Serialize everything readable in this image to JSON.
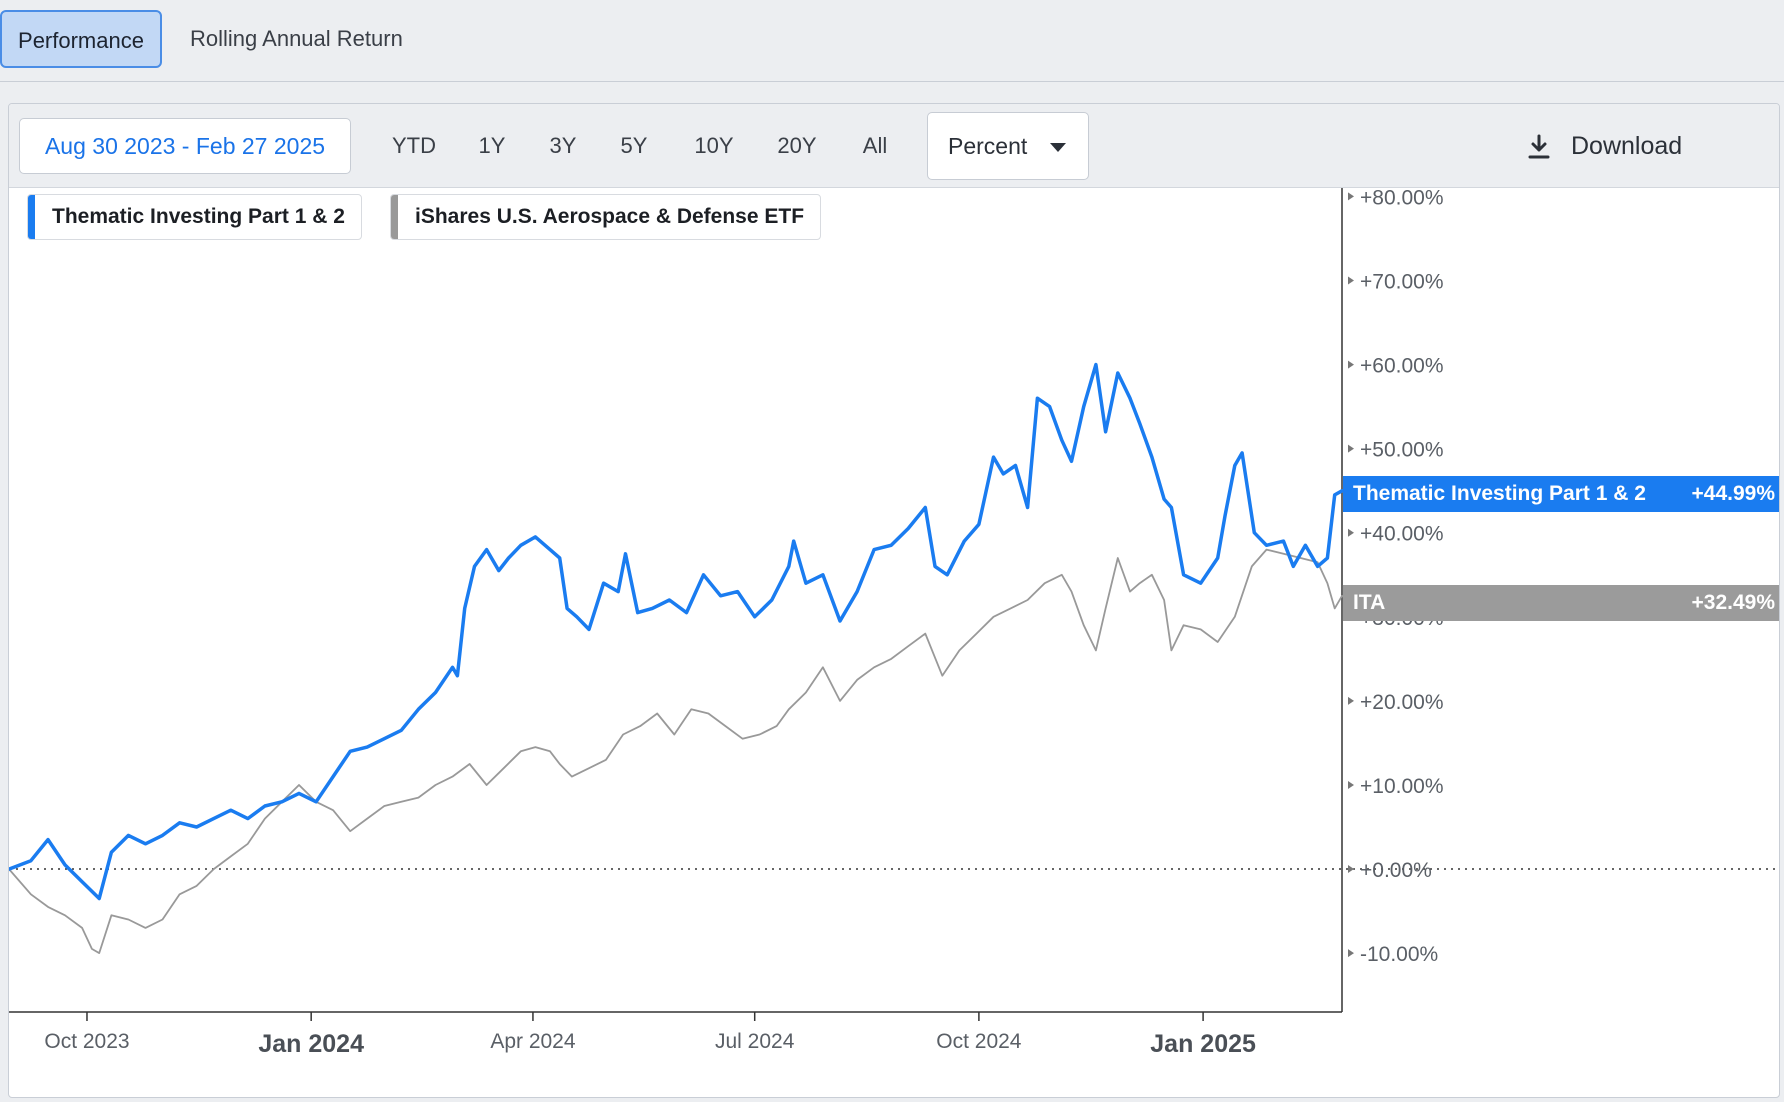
{
  "tabs": [
    {
      "label": "Performance",
      "active": true
    },
    {
      "label": "Rolling Annual Return",
      "active": false
    }
  ],
  "toolbar": {
    "date_range": "Aug 30 2023 - Feb 27 2025",
    "periods": [
      "YTD",
      "1Y",
      "3Y",
      "5Y",
      "10Y",
      "20Y",
      "All"
    ],
    "unit_selected": "Percent",
    "download_label": "Download"
  },
  "legend": [
    {
      "name": "Thematic Investing Part 1 & 2",
      "color": "#1a7cf0"
    },
    {
      "name": "iShares U.S. Aerospace & Defense ETF",
      "color": "#999999"
    }
  ],
  "end_labels": [
    {
      "name": "Thematic Investing Part 1 & 2",
      "value": "+44.99%",
      "color": "#1a7cf0"
    },
    {
      "name": "ITA",
      "value": "+32.49%",
      "color": "#9b9b9b"
    }
  ],
  "chart_data": {
    "type": "line",
    "ylim": [
      -17,
      81
    ],
    "y_ticks": [
      80,
      70,
      60,
      50,
      40,
      30,
      20,
      10,
      0,
      -10
    ],
    "y_tick_labels": [
      "+80.00%",
      "+70.00%",
      "+60.00%",
      "+50.00%",
      "+40.00%",
      "+30.00%",
      "+20.00%",
      "+10.00%",
      "+0.00%",
      "-10.00%"
    ],
    "x_ticks": [
      {
        "label": "Oct 2023",
        "date": "2023-10-01",
        "bold": false
      },
      {
        "label": "Jan 2024",
        "date": "2024-01-01",
        "bold": true
      },
      {
        "label": "Apr 2024",
        "date": "2024-04-01",
        "bold": false
      },
      {
        "label": "Jul 2024",
        "date": "2024-07-01",
        "bold": false
      },
      {
        "label": "Oct 2024",
        "date": "2024-10-01",
        "bold": false
      },
      {
        "label": "Jan 2025",
        "date": "2025-01-01",
        "bold": true
      }
    ],
    "x_range": [
      "2023-08-30",
      "2025-02-27"
    ],
    "series": [
      {
        "name": "Thematic Investing Part 1 & 2",
        "color": "#1a7cf0",
        "points": [
          [
            "2023-08-30",
            0
          ],
          [
            "2023-09-08",
            1
          ],
          [
            "2023-09-15",
            3.5
          ],
          [
            "2023-09-22",
            0.5
          ],
          [
            "2023-09-29",
            -1.5
          ],
          [
            "2023-10-06",
            -3.5
          ],
          [
            "2023-10-11",
            2
          ],
          [
            "2023-10-18",
            4
          ],
          [
            "2023-10-25",
            3
          ],
          [
            "2023-11-01",
            4
          ],
          [
            "2023-11-08",
            5.5
          ],
          [
            "2023-11-15",
            5
          ],
          [
            "2023-11-22",
            6
          ],
          [
            "2023-11-29",
            7
          ],
          [
            "2023-12-06",
            6
          ],
          [
            "2023-12-13",
            7.5
          ],
          [
            "2023-12-20",
            8
          ],
          [
            "2023-12-27",
            9
          ],
          [
            "2024-01-03",
            8
          ],
          [
            "2024-01-10",
            11
          ],
          [
            "2024-01-17",
            14
          ],
          [
            "2024-01-24",
            14.5
          ],
          [
            "2024-01-31",
            15.5
          ],
          [
            "2024-02-07",
            16.5
          ],
          [
            "2024-02-14",
            19
          ],
          [
            "2024-02-21",
            21
          ],
          [
            "2024-02-28",
            24
          ],
          [
            "2024-03-01",
            23
          ],
          [
            "2024-03-04",
            31
          ],
          [
            "2024-03-08",
            36
          ],
          [
            "2024-03-13",
            38
          ],
          [
            "2024-03-18",
            35.5
          ],
          [
            "2024-03-22",
            37
          ],
          [
            "2024-03-27",
            38.5
          ],
          [
            "2024-04-02",
            39.5
          ],
          [
            "2024-04-08",
            38
          ],
          [
            "2024-04-12",
            37
          ],
          [
            "2024-04-15",
            31
          ],
          [
            "2024-04-19",
            30
          ],
          [
            "2024-04-24",
            28.5
          ],
          [
            "2024-04-30",
            34
          ],
          [
            "2024-05-06",
            33
          ],
          [
            "2024-05-09",
            37.5
          ],
          [
            "2024-05-14",
            30.5
          ],
          [
            "2024-05-20",
            31
          ],
          [
            "2024-05-27",
            32
          ],
          [
            "2024-06-03",
            30.5
          ],
          [
            "2024-06-10",
            35
          ],
          [
            "2024-06-17",
            32.5
          ],
          [
            "2024-06-24",
            33
          ],
          [
            "2024-07-01",
            30
          ],
          [
            "2024-07-08",
            32
          ],
          [
            "2024-07-15",
            36
          ],
          [
            "2024-07-17",
            39
          ],
          [
            "2024-07-22",
            34
          ],
          [
            "2024-07-29",
            35
          ],
          [
            "2024-08-05",
            29.5
          ],
          [
            "2024-08-12",
            33
          ],
          [
            "2024-08-19",
            38
          ],
          [
            "2024-08-26",
            38.5
          ],
          [
            "2024-09-02",
            40.5
          ],
          [
            "2024-09-09",
            43
          ],
          [
            "2024-09-13",
            36
          ],
          [
            "2024-09-18",
            35
          ],
          [
            "2024-09-25",
            39
          ],
          [
            "2024-10-01",
            41
          ],
          [
            "2024-10-07",
            49
          ],
          [
            "2024-10-11",
            47
          ],
          [
            "2024-10-16",
            48
          ],
          [
            "2024-10-21",
            43
          ],
          [
            "2024-10-25",
            56
          ],
          [
            "2024-10-30",
            55
          ],
          [
            "2024-11-04",
            51
          ],
          [
            "2024-11-08",
            48.5
          ],
          [
            "2024-11-13",
            55
          ],
          [
            "2024-11-18",
            60
          ],
          [
            "2024-11-22",
            52
          ],
          [
            "2024-11-27",
            59
          ],
          [
            "2024-12-02",
            56
          ],
          [
            "2024-12-06",
            53
          ],
          [
            "2024-12-11",
            49
          ],
          [
            "2024-12-16",
            44
          ],
          [
            "2024-12-19",
            43
          ],
          [
            "2024-12-24",
            35
          ],
          [
            "2024-12-31",
            34
          ],
          [
            "2025-01-07",
            37
          ],
          [
            "2025-01-10",
            42
          ],
          [
            "2025-01-14",
            48
          ],
          [
            "2025-01-17",
            49.5
          ],
          [
            "2025-01-22",
            40
          ],
          [
            "2025-01-27",
            38.5
          ],
          [
            "2025-02-03",
            39
          ],
          [
            "2025-02-07",
            36
          ],
          [
            "2025-02-12",
            38.5
          ],
          [
            "2025-02-17",
            36
          ],
          [
            "2025-02-21",
            37
          ],
          [
            "2025-02-24",
            44.5
          ],
          [
            "2025-02-27",
            44.99
          ]
        ]
      },
      {
        "name": "iShares U.S. Aerospace & Defense ETF",
        "color": "#999999",
        "points": [
          [
            "2023-08-30",
            0
          ],
          [
            "2023-09-08",
            -3
          ],
          [
            "2023-09-15",
            -4.5
          ],
          [
            "2023-09-22",
            -5.5
          ],
          [
            "2023-09-29",
            -7
          ],
          [
            "2023-10-03",
            -9.5
          ],
          [
            "2023-10-06",
            -10
          ],
          [
            "2023-10-11",
            -5.5
          ],
          [
            "2023-10-18",
            -6
          ],
          [
            "2023-10-25",
            -7
          ],
          [
            "2023-11-01",
            -6
          ],
          [
            "2023-11-08",
            -3
          ],
          [
            "2023-11-15",
            -2
          ],
          [
            "2023-11-22",
            0
          ],
          [
            "2023-11-29",
            1.5
          ],
          [
            "2023-12-06",
            3
          ],
          [
            "2023-12-13",
            6
          ],
          [
            "2023-12-20",
            8
          ],
          [
            "2023-12-27",
            10
          ],
          [
            "2024-01-03",
            8
          ],
          [
            "2024-01-10",
            7
          ],
          [
            "2024-01-17",
            4.5
          ],
          [
            "2024-01-24",
            6
          ],
          [
            "2024-01-31",
            7.5
          ],
          [
            "2024-02-07",
            8
          ],
          [
            "2024-02-14",
            8.5
          ],
          [
            "2024-02-21",
            10
          ],
          [
            "2024-02-28",
            11
          ],
          [
            "2024-03-06",
            12.5
          ],
          [
            "2024-03-13",
            10
          ],
          [
            "2024-03-20",
            12
          ],
          [
            "2024-03-27",
            14
          ],
          [
            "2024-04-02",
            14.5
          ],
          [
            "2024-04-08",
            14
          ],
          [
            "2024-04-12",
            12.5
          ],
          [
            "2024-04-17",
            11
          ],
          [
            "2024-04-24",
            12
          ],
          [
            "2024-05-01",
            13
          ],
          [
            "2024-05-08",
            16
          ],
          [
            "2024-05-15",
            17
          ],
          [
            "2024-05-22",
            18.5
          ],
          [
            "2024-05-29",
            16
          ],
          [
            "2024-06-05",
            19
          ],
          [
            "2024-06-12",
            18.5
          ],
          [
            "2024-06-19",
            17
          ],
          [
            "2024-06-26",
            15.5
          ],
          [
            "2024-07-03",
            16
          ],
          [
            "2024-07-10",
            17
          ],
          [
            "2024-07-15",
            19
          ],
          [
            "2024-07-22",
            21
          ],
          [
            "2024-07-29",
            24
          ],
          [
            "2024-08-05",
            20
          ],
          [
            "2024-08-12",
            22.5
          ],
          [
            "2024-08-19",
            24
          ],
          [
            "2024-08-26",
            25
          ],
          [
            "2024-09-02",
            26.5
          ],
          [
            "2024-09-09",
            28
          ],
          [
            "2024-09-16",
            23
          ],
          [
            "2024-09-23",
            26
          ],
          [
            "2024-09-30",
            28
          ],
          [
            "2024-10-07",
            30
          ],
          [
            "2024-10-14",
            31
          ],
          [
            "2024-10-21",
            32
          ],
          [
            "2024-10-28",
            34
          ],
          [
            "2024-11-04",
            35
          ],
          [
            "2024-11-08",
            33
          ],
          [
            "2024-11-13",
            29
          ],
          [
            "2024-11-18",
            26
          ],
          [
            "2024-11-22",
            31
          ],
          [
            "2024-11-27",
            37
          ],
          [
            "2024-12-02",
            33
          ],
          [
            "2024-12-06",
            34
          ],
          [
            "2024-12-11",
            35
          ],
          [
            "2024-12-16",
            32
          ],
          [
            "2024-12-19",
            26
          ],
          [
            "2024-12-24",
            29
          ],
          [
            "2024-12-31",
            28.5
          ],
          [
            "2025-01-07",
            27
          ],
          [
            "2025-01-14",
            30
          ],
          [
            "2025-01-21",
            36
          ],
          [
            "2025-01-27",
            38
          ],
          [
            "2025-02-03",
            37.5
          ],
          [
            "2025-02-10",
            37
          ],
          [
            "2025-02-17",
            36.5
          ],
          [
            "2025-02-21",
            34
          ],
          [
            "2025-02-24",
            31
          ],
          [
            "2025-02-27",
            32.49
          ]
        ]
      }
    ]
  }
}
